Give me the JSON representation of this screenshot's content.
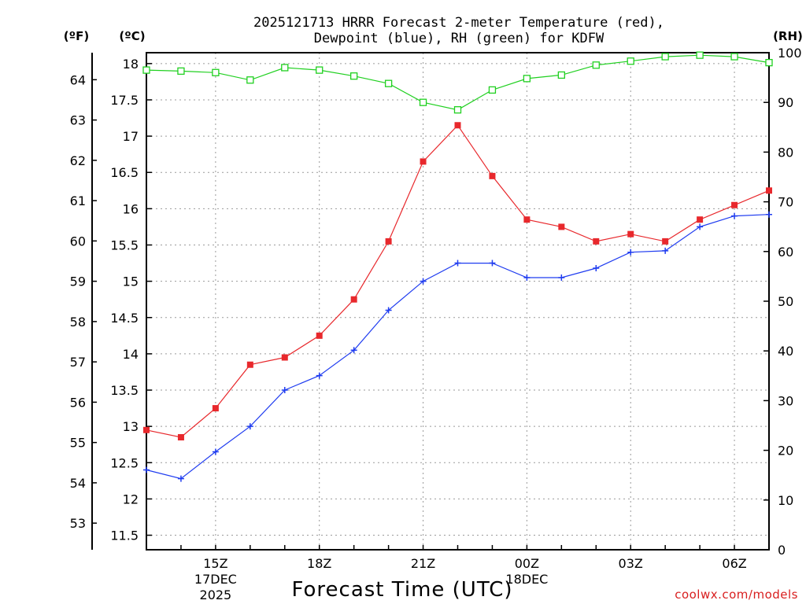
{
  "chart_data": {
    "type": "line",
    "title_line1": "2025121713 HRRR Forecast 2-meter Temperature (red),",
    "title_line2": "Dewpoint (blue), RH (green) for KDFW",
    "xlabel": "Forecast Time (UTC)",
    "credit": "coolwx.com/models",
    "units": {
      "fahrenheit": "(ºF)",
      "celsius": "(ºC)",
      "rh": "(RH)"
    },
    "x": [
      "13Z",
      "14Z",
      "15Z",
      "16Z",
      "17Z",
      "18Z",
      "19Z",
      "20Z",
      "21Z",
      "22Z",
      "23Z",
      "00Z",
      "01Z",
      "02Z",
      "03Z",
      "04Z",
      "05Z",
      "06Z",
      "07Z"
    ],
    "x_ticks": [
      {
        "index": 2,
        "label": "15Z",
        "sub1": "17DEC",
        "sub2": "2025"
      },
      {
        "index": 5,
        "label": "18Z",
        "sub1": "",
        "sub2": ""
      },
      {
        "index": 8,
        "label": "21Z",
        "sub1": "",
        "sub2": ""
      },
      {
        "index": 11,
        "label": "00Z",
        "sub1": "18DEC",
        "sub2": ""
      },
      {
        "index": 14,
        "label": "03Z",
        "sub1": "",
        "sub2": ""
      },
      {
        "index": 17,
        "label": "06Z",
        "sub1": "",
        "sub2": ""
      }
    ],
    "celsius_axis": {
      "range": [
        11.3,
        18.15
      ],
      "ticks": [
        "11.5",
        "12",
        "12.5",
        "13",
        "13.5",
        "14",
        "14.5",
        "15",
        "15.5",
        "16",
        "16.5",
        "17",
        "17.5",
        "18"
      ]
    },
    "fahrenheit_axis": {
      "range": [
        52.34,
        64.67
      ],
      "ticks": [
        "53",
        "54",
        "55",
        "56",
        "57",
        "58",
        "59",
        "60",
        "61",
        "62",
        "63",
        "64"
      ]
    },
    "rh_axis": {
      "range": [
        0,
        100
      ],
      "ticks": [
        "0",
        "10",
        "20",
        "30",
        "40",
        "50",
        "60",
        "70",
        "80",
        "90",
        "100"
      ]
    },
    "series": [
      {
        "name": "Temperature",
        "axis": "celsius",
        "color": "#e8282c",
        "marker": "filled-square",
        "values": [
          12.95,
          12.85,
          13.25,
          13.85,
          13.95,
          14.25,
          14.75,
          15.55,
          16.65,
          17.15,
          16.45,
          15.85,
          15.75,
          15.55,
          15.65,
          15.55,
          15.85,
          16.05,
          16.25
        ]
      },
      {
        "name": "Dewpoint",
        "axis": "celsius",
        "color": "#1f3cf0",
        "marker": "plus",
        "values": [
          12.4,
          12.28,
          12.65,
          13.0,
          13.5,
          13.7,
          14.05,
          14.6,
          15.0,
          15.25,
          15.25,
          15.05,
          15.05,
          15.18,
          15.4,
          15.42,
          15.75,
          15.9,
          15.92
        ]
      },
      {
        "name": "RH",
        "axis": "rh",
        "color": "#20d020",
        "marker": "open-square",
        "values": [
          96.5,
          96.3,
          96.0,
          94.5,
          97.0,
          96.5,
          95.3,
          93.8,
          90.0,
          88.5,
          92.5,
          94.8,
          95.5,
          97.5,
          98.3,
          99.2,
          99.5,
          99.2,
          98.0
        ]
      }
    ]
  }
}
